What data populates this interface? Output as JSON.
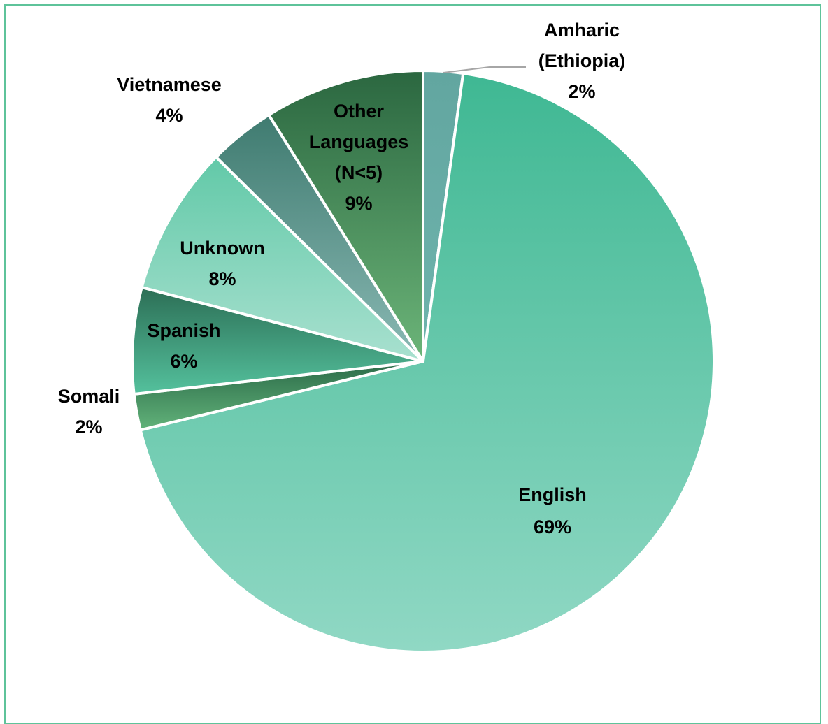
{
  "chart_data": {
    "type": "pie",
    "title": "",
    "slices": [
      {
        "key": "amharic",
        "label_lines": [
          "Amharic",
          "(Ethiopia)"
        ],
        "percent_label": "2%",
        "value": 2.2
      },
      {
        "key": "english",
        "label_lines": [
          "English"
        ],
        "percent_label": "69%",
        "value": 69.0
      },
      {
        "key": "somali",
        "label_lines": [
          "Somali"
        ],
        "percent_label": "2%",
        "value": 2.0
      },
      {
        "key": "spanish",
        "label_lines": [
          "Spanish"
        ],
        "percent_label": "6%",
        "value": 5.9
      },
      {
        "key": "unknown",
        "label_lines": [
          "Unknown"
        ],
        "percent_label": "8%",
        "value": 8.3
      },
      {
        "key": "vietnamese",
        "label_lines": [
          "Vietnamese"
        ],
        "percent_label": "4%",
        "value": 3.7
      },
      {
        "key": "other",
        "label_lines": [
          "Other",
          "Languages",
          "(N<5)"
        ],
        "percent_label": "9%",
        "value": 8.9
      }
    ],
    "colors": {
      "amharic": [
        "#62a6a0",
        "#6fb4ad"
      ],
      "english": [
        "#3fb893",
        "#90d8c4"
      ],
      "somali": [
        "#2b6a48",
        "#62b37a"
      ],
      "spanish": [
        "#2c6e55",
        "#54c19d"
      ],
      "unknown": [
        "#62c9a8",
        "#a8e0cf"
      ],
      "vietnamese": [
        "#3f7b70",
        "#8ab9b4"
      ],
      "other": [
        "#2b6740",
        "#6cb579"
      ]
    }
  }
}
